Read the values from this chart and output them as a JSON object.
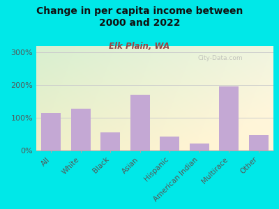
{
  "title": "Change in per capita income between\n2000 and 2022",
  "subtitle": "Elk Plain, WA",
  "categories": [
    "All",
    "White",
    "Black",
    "Asian",
    "Hispanic",
    "American Indian",
    "Multirace",
    "Other"
  ],
  "values": [
    115,
    128,
    55,
    170,
    42,
    22,
    196,
    48
  ],
  "bar_color": "#c4a8d4",
  "background_outer": "#00e8e8",
  "background_inner_top_left": "#d8efd0",
  "background_inner_bottom_right": "#f5f5e8",
  "title_color": "#111111",
  "subtitle_color": "#994444",
  "ylabel_ticks": [
    "0%",
    "100%",
    "200%",
    "300%"
  ],
  "ytick_vals": [
    0,
    100,
    200,
    300
  ],
  "ylim": [
    0,
    320
  ],
  "watermark": "City-Data.com",
  "grid_color": "#cccccc",
  "spine_color": "#aaaaaa"
}
